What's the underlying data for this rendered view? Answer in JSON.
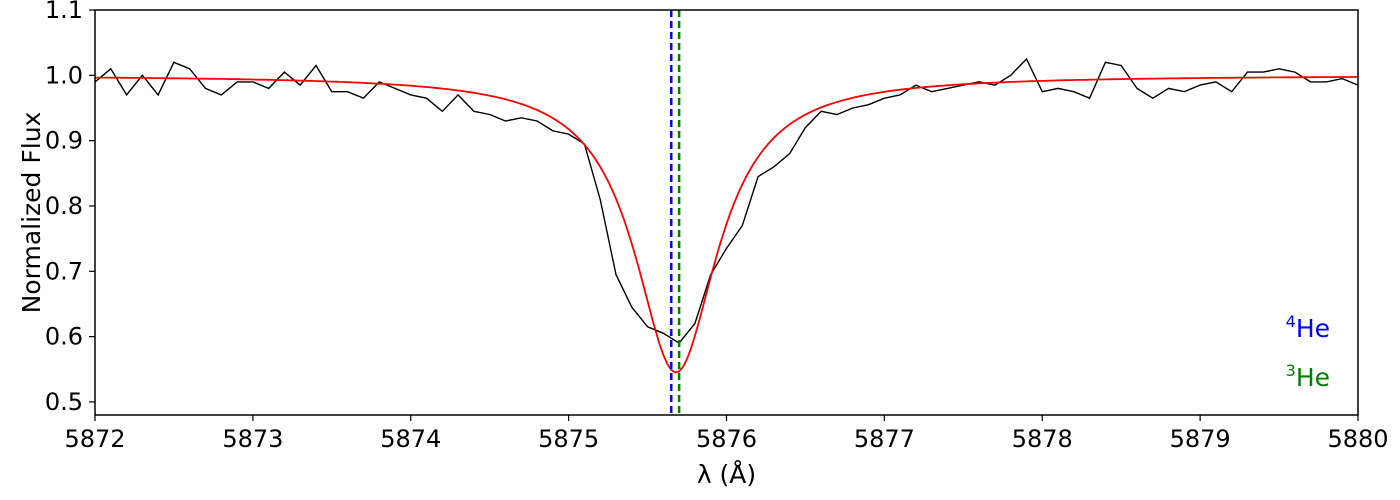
{
  "chart_data": {
    "type": "line",
    "xlabel": "λ (Å)",
    "ylabel": "Normalized Flux",
    "xlim": [
      5872,
      5880
    ],
    "ylim": [
      0.48,
      1.1
    ],
    "xticks": [
      5872,
      5873,
      5874,
      5875,
      5876,
      5877,
      5878,
      5879,
      5880
    ],
    "yticks": [
      0.5,
      0.6,
      0.7,
      0.8,
      0.9,
      1.0,
      1.1
    ],
    "ytick_labels": [
      "0.5",
      "0.6",
      "0.7",
      "0.8",
      "0.9",
      "1.0",
      "1.1"
    ],
    "grid": false,
    "series": [
      {
        "color": "#000000",
        "x": [
          5872.0,
          5872.1,
          5872.2,
          5872.3,
          5872.4,
          5872.5,
          5872.6,
          5872.7,
          5872.8,
          5872.9,
          5873.0,
          5873.1,
          5873.2,
          5873.3,
          5873.4,
          5873.5,
          5873.6,
          5873.7,
          5873.8,
          5873.9,
          5874.0,
          5874.1,
          5874.2,
          5874.3,
          5874.4,
          5874.5,
          5874.6,
          5874.7,
          5874.8,
          5874.9,
          5875.0,
          5875.1,
          5875.2,
          5875.3,
          5875.4,
          5875.5,
          5875.6,
          5875.7,
          5875.8,
          5875.9,
          5876.0,
          5876.1,
          5876.2,
          5876.3,
          5876.4,
          5876.5,
          5876.6,
          5876.7,
          5876.8,
          5876.9,
          5877.0,
          5877.1,
          5877.2,
          5877.3,
          5877.4,
          5877.5,
          5877.6,
          5877.7,
          5877.8,
          5877.9,
          5878.0,
          5878.1,
          5878.2,
          5878.3,
          5878.4,
          5878.5,
          5878.6,
          5878.7,
          5878.8,
          5878.9,
          5879.0,
          5879.1,
          5879.2,
          5879.3,
          5879.4,
          5879.5,
          5879.6,
          5879.7,
          5879.8,
          5879.9,
          5880.0
        ],
        "values": [
          0.99,
          1.01,
          0.97,
          1.0,
          0.97,
          1.02,
          1.01,
          0.98,
          0.97,
          0.99,
          0.99,
          0.98,
          1.005,
          0.985,
          1.015,
          0.975,
          0.975,
          0.965,
          0.99,
          0.98,
          0.97,
          0.965,
          0.945,
          0.97,
          0.945,
          0.94,
          0.93,
          0.935,
          0.93,
          0.915,
          0.91,
          0.895,
          0.81,
          0.695,
          0.645,
          0.615,
          0.605,
          0.59,
          0.62,
          0.695,
          0.735,
          0.77,
          0.845,
          0.86,
          0.88,
          0.92,
          0.945,
          0.94,
          0.95,
          0.955,
          0.965,
          0.97,
          0.985,
          0.975,
          0.98,
          0.985,
          0.99,
          0.985,
          1.0,
          1.025,
          0.975,
          0.98,
          0.975,
          0.965,
          1.02,
          1.015,
          0.98,
          0.965,
          0.98,
          0.975,
          0.985,
          0.99,
          0.975,
          1.005,
          1.005,
          1.01,
          1.005,
          0.99,
          0.99,
          0.995,
          0.985
        ]
      },
      {
        "color": "#ff0000",
        "model": {
          "continuum": 1.0,
          "depth": 0.455,
          "center": 5875.68,
          "width": 0.32
        },
        "x_range": [
          5872,
          5880
        ],
        "points": 321
      }
    ],
    "vlines": [
      {
        "x": 5875.65,
        "color": "#0000ff",
        "style": "dashed"
      },
      {
        "x": 5875.7,
        "color": "#008000",
        "style": "dashed"
      }
    ],
    "legend": {
      "placement": "lower-right",
      "entries": [
        {
          "mass_number": "4",
          "element": "He",
          "color": "#0000ff"
        },
        {
          "mass_number": "3",
          "element": "He",
          "color": "#008000"
        }
      ]
    }
  }
}
